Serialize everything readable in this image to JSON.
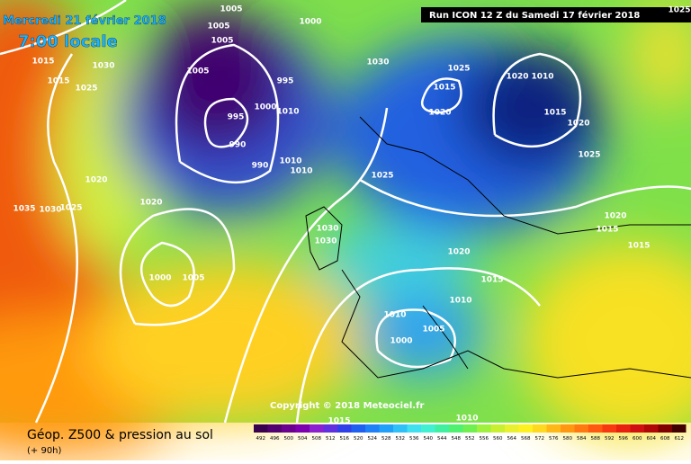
{
  "header": {
    "date": "Mercredi 21 février 2018",
    "time": "7:00 locale",
    "run": "Run ICON 12 Z du Samedi 17 février 2018"
  },
  "copyright": "Copyright © 2018 Meteociel.fr",
  "footer": {
    "title": "Géop. Z500 & pression au sol",
    "lead": "(+ 90h)"
  },
  "scale": [
    492,
    496,
    500,
    504,
    508,
    512,
    516,
    520,
    524,
    528,
    532,
    536,
    540,
    544,
    548,
    552,
    556,
    560,
    564,
    568,
    572,
    576,
    580,
    584,
    588,
    592,
    596,
    600,
    604,
    608,
    612
  ],
  "isobar_labels": [
    "1005",
    "1000",
    "1005",
    "1005",
    "1005",
    "1030",
    "1015",
    "1015",
    "1025",
    "995",
    "1000",
    "1010",
    "995",
    "990",
    "990",
    "1010",
    "1010",
    "1020",
    "1020",
    "1035",
    "1030",
    "1025",
    "1000",
    "1005",
    "1030",
    "1030",
    "1025",
    "1030",
    "1025",
    "1015",
    "1020",
    "1020",
    "1010",
    "1015",
    "1020",
    "1025",
    "1020",
    "1015",
    "1015",
    "1020",
    "1015",
    "1010",
    "1010",
    "1005",
    "1000",
    "1010",
    "1015",
    "1025"
  ]
}
